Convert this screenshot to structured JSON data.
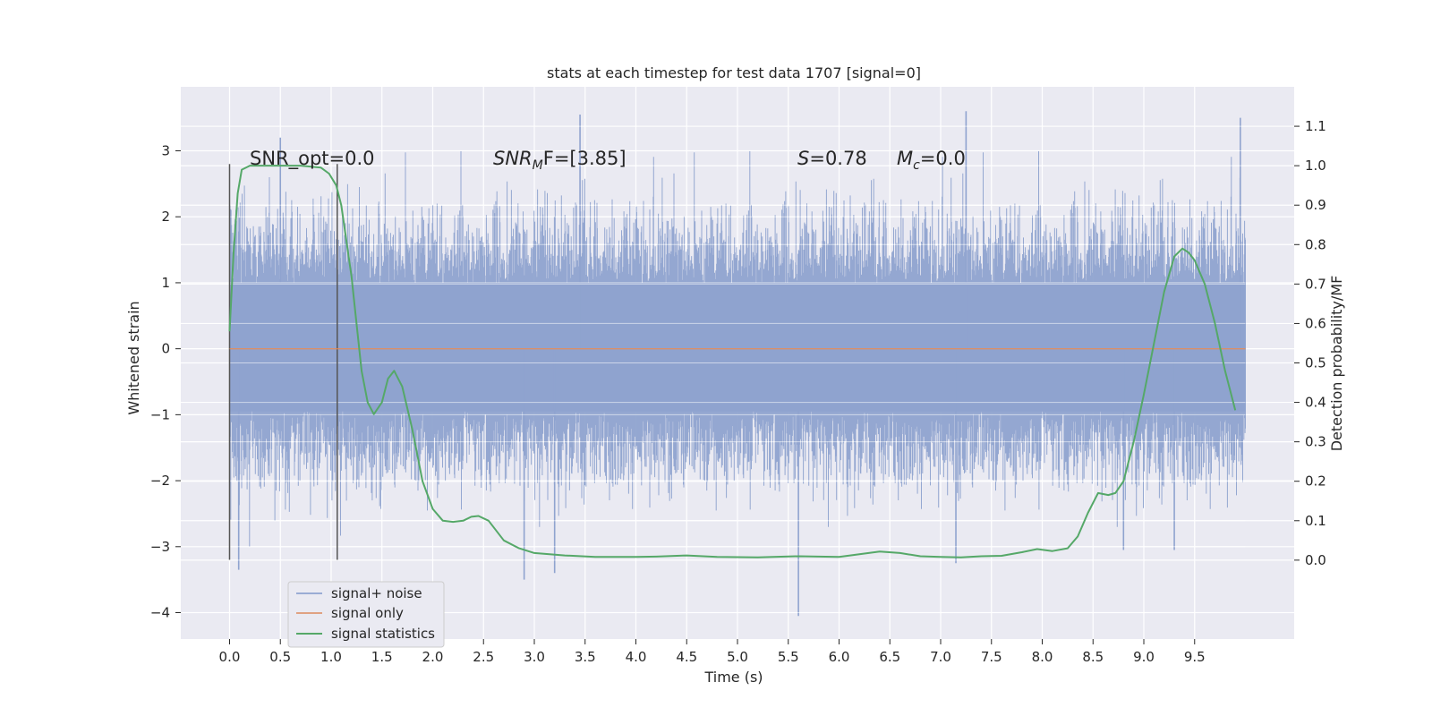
{
  "chart_data": {
    "type": "line",
    "title": "stats at each timestep for test data 1707 [signal=0]",
    "xlabel": "Time (s)",
    "ylabel_left": "Whitened strain",
    "ylabel_right": "Detection probability/MF",
    "xlim": [
      -0.48,
      10.48
    ],
    "ylim_left": [
      -4.4,
      3.97
    ],
    "ylim_right": [
      -0.2,
      1.2
    ],
    "x_ticks": [
      "0.0",
      "0.5",
      "1.0",
      "1.5",
      "2.0",
      "2.5",
      "3.0",
      "3.5",
      "4.0",
      "4.5",
      "5.0",
      "5.5",
      "6.0",
      "6.5",
      "7.0",
      "7.5",
      "8.0",
      "8.5",
      "9.0",
      "9.5"
    ],
    "y_ticks_left": [
      "3",
      "2",
      "1",
      "0",
      "−1",
      "−2",
      "−3",
      "−4"
    ],
    "y_ticks_right": [
      "1.1",
      "1.0",
      "0.9",
      "0.8",
      "0.7",
      "0.6",
      "0.5",
      "0.4",
      "0.3",
      "0.2",
      "0.1",
      "0.0"
    ],
    "grid": true,
    "legend_placement": "lower-left",
    "colors": {
      "signal_noise": "#8fa3cf",
      "signal_only": "#dd8452",
      "signal_statistics": "#55a868",
      "plot_bg": "#eaeaf2",
      "marker_line": "#555555"
    },
    "annotations": {
      "snr_opt": "SNR_opt=0.0",
      "snr_mf_italic": "SNR",
      "snr_mf_sub": "M",
      "snr_mf_tail": "F=[3.85]",
      "s_italic": "S",
      "s_tail": "=0.78",
      "mc_italic": "M",
      "mc_sub": "c",
      "mc_tail": "=0.0"
    },
    "series": [
      {
        "name": "signal+ noise",
        "kind": "noise",
        "x_range": [
          0.0,
          10.0
        ],
        "envelope_typical": [
          -1.5,
          1.6
        ],
        "extremes": [
          {
            "x": 0.09,
            "y": -3.35
          },
          {
            "x": 0.5,
            "y": 3.2
          },
          {
            "x": 2.9,
            "y": -3.5
          },
          {
            "x": 3.2,
            "y": -3.4
          },
          {
            "x": 3.45,
            "y": 3.55
          },
          {
            "x": 5.6,
            "y": -4.05
          },
          {
            "x": 7.25,
            "y": 3.6
          },
          {
            "x": 7.15,
            "y": -3.25
          },
          {
            "x": 8.8,
            "y": -3.05
          },
          {
            "x": 9.95,
            "y": 3.5
          },
          {
            "x": 9.3,
            "y": -3.05
          }
        ]
      },
      {
        "name": "signal only",
        "kind": "line",
        "x": [
          0.0,
          10.0
        ],
        "y": [
          0.0,
          0.0
        ]
      },
      {
        "name": "signal statistics",
        "kind": "line",
        "axis": "right",
        "x": [
          0.0,
          0.04,
          0.08,
          0.12,
          0.2,
          0.3,
          0.5,
          0.7,
          0.9,
          0.98,
          1.05,
          1.1,
          1.2,
          1.3,
          1.36,
          1.42,
          1.5,
          1.56,
          1.62,
          1.7,
          1.8,
          1.9,
          2.0,
          2.1,
          2.2,
          2.3,
          2.38,
          2.45,
          2.55,
          2.7,
          2.85,
          3.0,
          3.3,
          3.6,
          4.0,
          4.2,
          4.5,
          4.8,
          5.2,
          5.6,
          6.0,
          6.2,
          6.4,
          6.6,
          6.8,
          7.0,
          7.2,
          7.4,
          7.6,
          7.8,
          7.95,
          8.1,
          8.25,
          8.35,
          8.45,
          8.55,
          8.65,
          8.72,
          8.8,
          8.9,
          9.0,
          9.1,
          9.2,
          9.3,
          9.38,
          9.44,
          9.5,
          9.6,
          9.7,
          9.8,
          9.9
        ],
        "y": [
          0.58,
          0.78,
          0.93,
          0.99,
          1.0,
          1.0,
          1.0,
          1.0,
          0.995,
          0.98,
          0.95,
          0.9,
          0.72,
          0.48,
          0.4,
          0.37,
          0.4,
          0.46,
          0.48,
          0.44,
          0.33,
          0.2,
          0.13,
          0.1,
          0.097,
          0.1,
          0.11,
          0.112,
          0.1,
          0.05,
          0.03,
          0.018,
          0.012,
          0.008,
          0.008,
          0.009,
          0.012,
          0.008,
          0.007,
          0.01,
          0.008,
          0.015,
          0.022,
          0.018,
          0.01,
          0.008,
          0.007,
          0.01,
          0.011,
          0.02,
          0.028,
          0.023,
          0.03,
          0.06,
          0.12,
          0.17,
          0.165,
          0.17,
          0.2,
          0.3,
          0.42,
          0.55,
          0.68,
          0.77,
          0.79,
          0.78,
          0.76,
          0.7,
          0.6,
          0.48,
          0.38
        ]
      }
    ],
    "markers_x": [
      0.0,
      1.06
    ]
  },
  "legend": {
    "items": [
      "signal+ noise",
      "signal only",
      "signal statistics"
    ]
  }
}
